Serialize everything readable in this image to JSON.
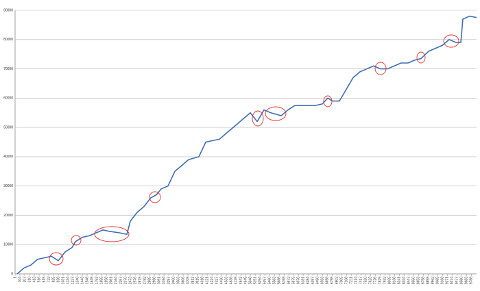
{
  "chart_data": {
    "type": "line",
    "x": [
      45,
      192,
      339,
      486,
      633,
      781,
      928,
      1075,
      1222,
      1295,
      1443,
      1590,
      1737,
      1884,
      2031,
      2252,
      2399,
      2473,
      2620,
      2767,
      2914,
      3032,
      3134,
      3281,
      3428,
      3576,
      3723,
      3944,
      4091,
      4238,
      4385,
      4532,
      4753,
      4900,
      5047,
      5194,
      5341,
      5488,
      5709,
      5856,
      6003,
      6222,
      6443,
      6590,
      6708,
      6811,
      6958,
      7105,
      7252,
      7399,
      7546,
      7693,
      7840,
      7988,
      8135,
      8282,
      8429,
      8576,
      8708,
      8870,
      9017,
      9164,
      9311,
      9458,
      9562,
      9606,
      9753,
      9900
    ],
    "series": [
      {
        "color": "#3c6eb4",
        "values": [
          0,
          2000,
          3000,
          5000,
          5500,
          6000,
          4500,
          7500,
          9000,
          11000,
          12500,
          13000,
          14000,
          15000,
          14500,
          14000,
          13500,
          18000,
          21000,
          23000,
          26000,
          27000,
          29000,
          30000,
          35000,
          37000,
          39000,
          40000,
          45000,
          45500,
          46000,
          48000,
          51000,
          53000,
          55000,
          52000,
          56000,
          55000,
          54000,
          56000,
          57500,
          57500,
          57500,
          58000,
          60000,
          59000,
          59000,
          63000,
          67000,
          69000,
          70000,
          71000,
          70000,
          70000,
          71000,
          72000,
          72000,
          73000,
          73500,
          76000,
          77000,
          78000,
          80000,
          79000,
          79000,
          87000,
          88000,
          87500
        ]
      }
    ],
    "xlim": [
      1,
      9900
    ],
    "xticks": [
      1,
      104,
      207,
      310,
      413,
      516,
      619,
      722,
      825,
      928,
      1031,
      1134,
      1237,
      1340,
      1443,
      1546,
      1649,
      1752,
      1855,
      1958,
      2061,
      2164,
      2267,
      2370,
      2473,
      2576,
      2679,
      2782,
      2885,
      2988,
      3091,
      3194,
      3297,
      3400,
      3503,
      3606,
      3709,
      3812,
      3915,
      4018,
      4121,
      4224,
      4327,
      4430,
      4533,
      4636,
      4739,
      4842,
      4945,
      5048,
      5151,
      5254,
      5357,
      5460,
      5563,
      5666,
      5769,
      5872,
      5975,
      6078,
      6181,
      6284,
      6387,
      6490,
      6593,
      6696,
      6799,
      6902,
      7005,
      7108,
      7211,
      7314,
      7417,
      7520,
      7623,
      7726,
      7829,
      7932,
      8035,
      8138,
      8241,
      8344,
      8447,
      8550,
      8653,
      8756,
      8859,
      8962,
      9065,
      9168,
      9271,
      9374,
      9477,
      9580,
      9683,
      9786
    ],
    "ylim": [
      0,
      90000
    ],
    "yticks": [
      0,
      10000,
      20000,
      30000,
      40000,
      50000,
      60000,
      70000,
      80000,
      90000
    ],
    "grid": true
  }
}
